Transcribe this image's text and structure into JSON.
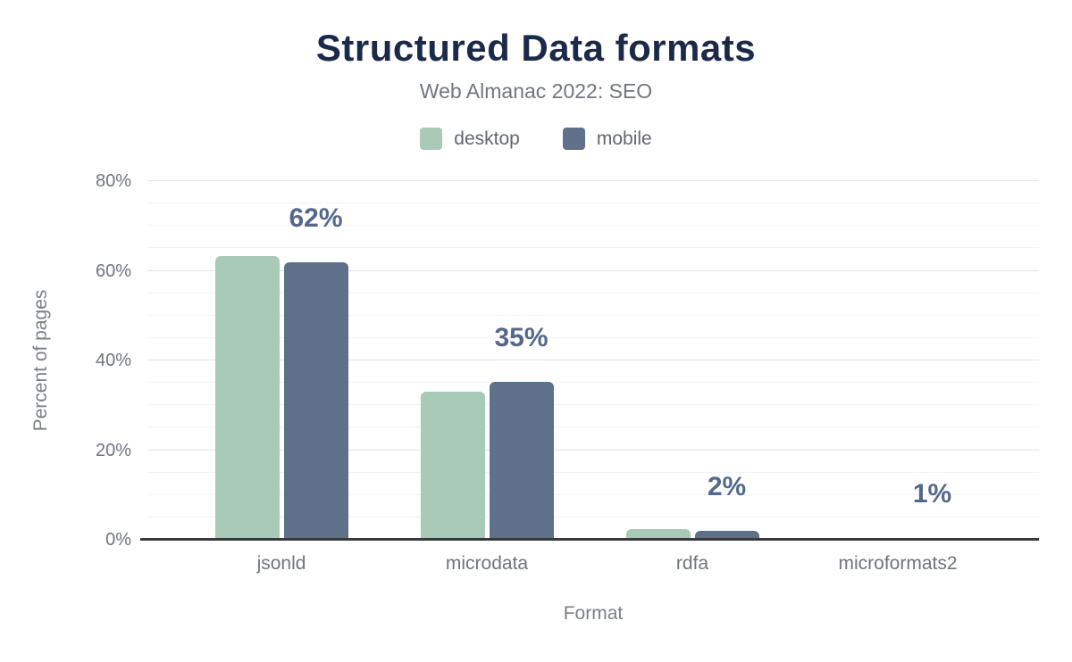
{
  "chart_data": {
    "type": "bar",
    "title": "Structured Data formats",
    "subtitle": "Web Almanac 2022: SEO",
    "xlabel": "Format",
    "ylabel": "Percent of pages",
    "categories": [
      "jsonld",
      "microdata",
      "rdfa",
      "microformats2"
    ],
    "series": [
      {
        "name": "desktop",
        "color": "#a9c9b9",
        "values": [
          63.3,
          33.0,
          2.3,
          0.06
        ]
      },
      {
        "name": "mobile",
        "color": "#5f708a",
        "values": [
          61.9,
          35.2,
          1.9,
          0.5
        ]
      }
    ],
    "value_labels": [
      "62%",
      "35%",
      "2%",
      "1%"
    ],
    "value_labels_refer_to": "mobile",
    "ylim": [
      0,
      80
    ],
    "yticks": [
      {
        "value": 0,
        "label": "0%"
      },
      {
        "value": 20,
        "label": "20%"
      },
      {
        "value": 40,
        "label": "40%"
      },
      {
        "value": 60,
        "label": "60%"
      },
      {
        "value": 80,
        "label": "80%"
      }
    ],
    "grid": {
      "orientation": "horizontal",
      "minor_interval": 5,
      "major_interval": 20
    },
    "legend_position": "top"
  },
  "colors": {
    "background": "#ffffff",
    "title": "#1c2a49",
    "subtitle": "#71767f",
    "legend_text": "#62666e",
    "axis_text": "#6f747d",
    "axis_title": "#7a7f86",
    "axis_line": "#37393c",
    "grid_major": "#e3e5e8",
    "grid_minor": "#f2f3f5",
    "value_label": "#54688e",
    "desktop_bar": "#a9c9b9",
    "mobile_bar": "#5f708a"
  }
}
